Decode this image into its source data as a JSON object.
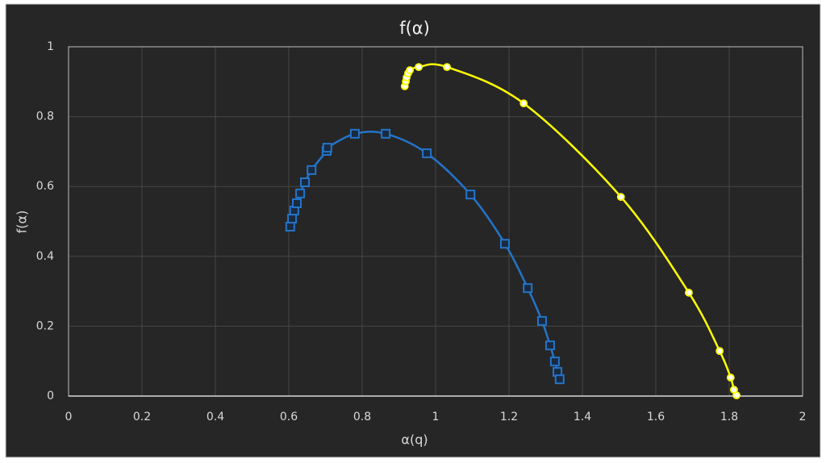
{
  "chart_data": {
    "type": "scatter",
    "title": "f(α)",
    "x_label": "α(q)",
    "y_label": "f(α)",
    "xlim": [
      0,
      2
    ],
    "xticks": [
      0,
      0.2,
      0.4,
      0.6,
      0.8,
      1,
      1.2,
      1.4,
      1.6,
      1.8,
      2
    ],
    "ylim": [
      0,
      1
    ],
    "yticks": [
      0,
      0.2,
      0.4,
      0.6,
      0.8,
      1
    ],
    "grid": true,
    "smooth": true,
    "series": [
      {
        "color": "#2474c8",
        "marker": "square",
        "x": [
          0.604,
          0.609,
          0.615,
          0.622,
          0.631,
          0.644,
          0.662,
          0.703,
          0.705,
          0.78,
          0.864,
          0.976,
          1.095,
          1.189,
          1.251,
          1.29,
          1.312,
          1.325,
          1.332,
          1.338
        ],
        "values": [
          0.485,
          0.508,
          0.531,
          0.552,
          0.58,
          0.612,
          0.647,
          0.702,
          0.711,
          0.751,
          0.751,
          0.695,
          0.577,
          0.436,
          0.309,
          0.215,
          0.145,
          0.099,
          0.069,
          0.048
        ]
      },
      {
        "color": "#ffff00",
        "marker": "circle",
        "x": [
          0.916,
          0.919,
          0.921,
          0.925,
          0.93,
          0.954,
          1.031,
          1.24,
          1.505,
          1.69,
          1.774,
          1.804,
          1.813,
          1.82
        ],
        "values": [
          0.887,
          0.901,
          0.912,
          0.924,
          0.933,
          0.942,
          0.942,
          0.838,
          0.57,
          0.296,
          0.129,
          0.053,
          0.018,
          0.002
        ]
      }
    ]
  }
}
